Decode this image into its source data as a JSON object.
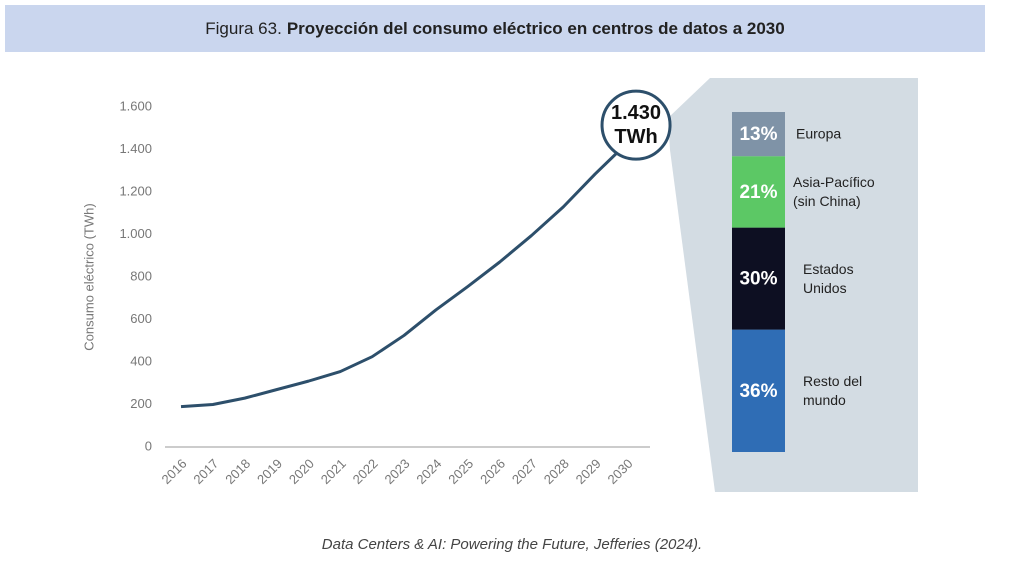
{
  "header": {
    "figure": "Figura 63.",
    "title": "Proyección del consumo eléctrico en centros de datos a 2030"
  },
  "chart_data": [
    {
      "type": "line",
      "y_label": "Consumo eléctrico (TWh)",
      "categories": [
        "2016",
        "2017",
        "2018",
        "2019",
        "2020",
        "2021",
        "2022",
        "2023",
        "2024",
        "2025",
        "2026",
        "2027",
        "2028",
        "2029",
        "2030"
      ],
      "values": [
        190,
        200,
        230,
        270,
        310,
        355,
        425,
        525,
        645,
        755,
        870,
        995,
        1130,
        1285,
        1430
      ],
      "value_labels": [
        null,
        null,
        null,
        null,
        null,
        null,
        null,
        null,
        null,
        null,
        null,
        null,
        null,
        null,
        "1.430 TWh"
      ],
      "color": "#2d4f6b",
      "grid": false,
      "ylim": [
        0,
        1600
      ],
      "yticks": [
        0,
        200,
        400,
        600,
        800,
        {
          "value": 1000,
          "label": "1.000"
        },
        {
          "value": 1200,
          "label": "1.200"
        },
        {
          "value": 1400,
          "label": "1.400"
        },
        {
          "value": 1600,
          "label": "1.600"
        }
      ]
    },
    {
      "type": "stacked-bar",
      "categories": [
        null
      ],
      "ylim": [
        0,
        100
      ],
      "series": [
        {
          "name": "Resto del mundo",
          "color": "#2f6db5",
          "values": [
            36
          ],
          "value_labels": [
            "36%"
          ]
        },
        {
          "name": "Estados Unidos",
          "color": "#0d0f22",
          "values": [
            30
          ],
          "value_labels": [
            "30%"
          ]
        },
        {
          "name": "Asia-Pacífico (sin China)",
          "color": "#5cc865",
          "values": [
            21
          ],
          "value_labels": [
            "21%"
          ]
        },
        {
          "name": "Europa",
          "color": "#7f93a7",
          "values": [
            13
          ],
          "value_labels": [
            "13%"
          ]
        }
      ]
    }
  ],
  "source": "Data Centers & AI: Powering the Future, Jefferies (2024)."
}
